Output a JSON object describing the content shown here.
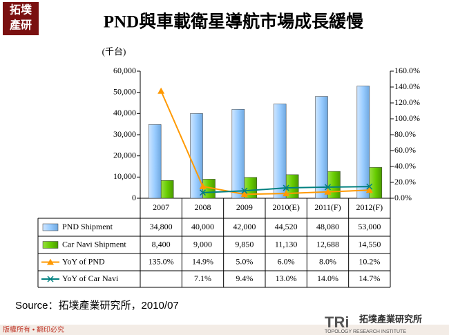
{
  "logo": {
    "line1": "拓墣",
    "line2": "產研"
  },
  "chart_data": {
    "type": "bar",
    "title": "PND與車載衛星導航市場成長緩慢",
    "y_unit": "(千台)",
    "categories": [
      "2007",
      "2008",
      "2009",
      "2010(E)",
      "2011(F)",
      "2012(F)"
    ],
    "ylim": [
      0,
      60000
    ],
    "yticks": [
      0,
      {
        "value": 10000,
        "label": "10,000"
      },
      {
        "value": 20000,
        "label": "20,000"
      },
      {
        "value": 30000,
        "label": "30,000"
      },
      {
        "value": 40000,
        "label": "40,000"
      },
      {
        "value": 50000,
        "label": "50,000"
      },
      {
        "value": 60000,
        "label": "60,000"
      }
    ],
    "y2lim": [
      0,
      160
    ],
    "y2ticks": [
      {
        "value": 0,
        "label": "0.0%"
      },
      {
        "value": 20,
        "label": "20.0%"
      },
      {
        "value": 40,
        "label": "40.0%"
      },
      {
        "value": 60,
        "label": "60.0%"
      },
      {
        "value": 80,
        "label": "80.0%"
      },
      {
        "value": 100,
        "label": "100.0%"
      },
      {
        "value": 120,
        "label": "120.0%"
      },
      {
        "value": 140,
        "label": "140.0%"
      },
      {
        "value": 160,
        "label": "160.0%"
      }
    ],
    "series": [
      {
        "name": "PND Shipment",
        "type": "bar",
        "color": "#99ccff",
        "values": [
          34800,
          40000,
          42000,
          44520,
          48080,
          53000
        ],
        "value_labels": [
          "34,800",
          "40,000",
          "42,000",
          "44,520",
          "48,080",
          "53,000"
        ]
      },
      {
        "name": "Car Navi Shipment",
        "type": "bar",
        "color": "#66cc00",
        "values": [
          8400,
          9000,
          9850,
          11130,
          12688,
          14550
        ],
        "value_labels": [
          "8,400",
          "9,000",
          "9,850",
          "11,130",
          "12,688",
          "14,550"
        ]
      },
      {
        "name": "YoY of PND",
        "type": "line",
        "axis": "y2",
        "marker": "triangle",
        "color": "#ff9900",
        "values": [
          135.0,
          14.9,
          5.0,
          6.0,
          8.0,
          10.2
        ],
        "value_labels": [
          "135.0%",
          "14.9%",
          "5.0%",
          "6.0%",
          "8.0%",
          "10.2%"
        ]
      },
      {
        "name": "YoY of Car Navi",
        "type": "line",
        "axis": "y2",
        "marker": "x",
        "color": "#008080",
        "values": [
          null,
          7.1,
          9.4,
          13.0,
          14.0,
          14.7
        ],
        "value_labels": [
          null,
          "7.1%",
          "9.4%",
          "13.0%",
          "14.0%",
          "14.7%"
        ]
      }
    ]
  },
  "source": "Source：拓墣產業研究所，2010/07",
  "copyright": "版權所有 • 翻印必究",
  "brand": {
    "mark": "TRi",
    "name": "拓墣產業研究所",
    "english": "TOPOLOGY RESEARCH INSTITUTE"
  }
}
